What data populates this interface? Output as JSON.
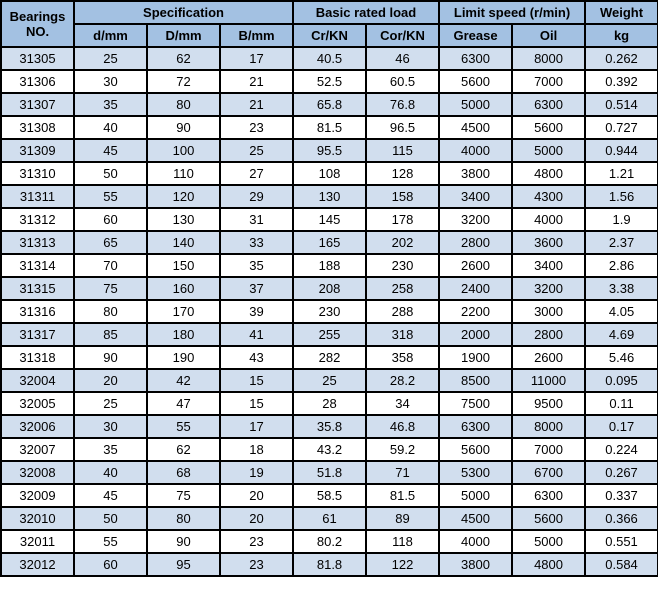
{
  "colors": {
    "header_bg": "#a3c1e2",
    "row_even": "#d1deee",
    "row_odd": "#ffffff",
    "border": "#000000"
  },
  "header": {
    "bearings_no": "Bearings NO.",
    "specification": "Specification",
    "basic_rated_load": "Basic rated load",
    "limit_speed": "Limit speed (r/min)",
    "weight": "Weight",
    "d_mm": "d/mm",
    "D_mm": "D/mm",
    "B_mm": "B/mm",
    "cr_kn": "Cr/KN",
    "cor_kn": "Cor/KN",
    "grease": "Grease",
    "oil": "Oil",
    "kg": "kg"
  },
  "columns": [
    "bno",
    "d",
    "D",
    "B",
    "cr",
    "cor",
    "grease",
    "oil",
    "wt"
  ],
  "rows": [
    {
      "bno": "31305",
      "d": "25",
      "D": "62",
      "B": "17",
      "cr": "40.5",
      "cor": "46",
      "grease": "6300",
      "oil": "8000",
      "wt": "0.262"
    },
    {
      "bno": "31306",
      "d": "30",
      "D": "72",
      "B": "21",
      "cr": "52.5",
      "cor": "60.5",
      "grease": "5600",
      "oil": "7000",
      "wt": "0.392"
    },
    {
      "bno": "31307",
      "d": "35",
      "D": "80",
      "B": "21",
      "cr": "65.8",
      "cor": "76.8",
      "grease": "5000",
      "oil": "6300",
      "wt": "0.514"
    },
    {
      "bno": "31308",
      "d": "40",
      "D": "90",
      "B": "23",
      "cr": "81.5",
      "cor": "96.5",
      "grease": "4500",
      "oil": "5600",
      "wt": "0.727"
    },
    {
      "bno": "31309",
      "d": "45",
      "D": "100",
      "B": "25",
      "cr": "95.5",
      "cor": "115",
      "grease": "4000",
      "oil": "5000",
      "wt": "0.944"
    },
    {
      "bno": "31310",
      "d": "50",
      "D": "110",
      "B": "27",
      "cr": "108",
      "cor": "128",
      "grease": "3800",
      "oil": "4800",
      "wt": "1.21"
    },
    {
      "bno": "31311",
      "d": "55",
      "D": "120",
      "B": "29",
      "cr": "130",
      "cor": "158",
      "grease": "3400",
      "oil": "4300",
      "wt": "1.56"
    },
    {
      "bno": "31312",
      "d": "60",
      "D": "130",
      "B": "31",
      "cr": "145",
      "cor": "178",
      "grease": "3200",
      "oil": "4000",
      "wt": "1.9"
    },
    {
      "bno": "31313",
      "d": "65",
      "D": "140",
      "B": "33",
      "cr": "165",
      "cor": "202",
      "grease": "2800",
      "oil": "3600",
      "wt": "2.37"
    },
    {
      "bno": "31314",
      "d": "70",
      "D": "150",
      "B": "35",
      "cr": "188",
      "cor": "230",
      "grease": "2600",
      "oil": "3400",
      "wt": "2.86"
    },
    {
      "bno": "31315",
      "d": "75",
      "D": "160",
      "B": "37",
      "cr": "208",
      "cor": "258",
      "grease": "2400",
      "oil": "3200",
      "wt": "3.38"
    },
    {
      "bno": "31316",
      "d": "80",
      "D": "170",
      "B": "39",
      "cr": "230",
      "cor": "288",
      "grease": "2200",
      "oil": "3000",
      "wt": "4.05"
    },
    {
      "bno": "31317",
      "d": "85",
      "D": "180",
      "B": "41",
      "cr": "255",
      "cor": "318",
      "grease": "2000",
      "oil": "2800",
      "wt": "4.69"
    },
    {
      "bno": "31318",
      "d": "90",
      "D": "190",
      "B": "43",
      "cr": "282",
      "cor": "358",
      "grease": "1900",
      "oil": "2600",
      "wt": "5.46"
    },
    {
      "bno": "32004",
      "d": "20",
      "D": "42",
      "B": "15",
      "cr": "25",
      "cor": "28.2",
      "grease": "8500",
      "oil": "11000",
      "wt": "0.095"
    },
    {
      "bno": "32005",
      "d": "25",
      "D": "47",
      "B": "15",
      "cr": "28",
      "cor": "34",
      "grease": "7500",
      "oil": "9500",
      "wt": "0.11"
    },
    {
      "bno": "32006",
      "d": "30",
      "D": "55",
      "B": "17",
      "cr": "35.8",
      "cor": "46.8",
      "grease": "6300",
      "oil": "8000",
      "wt": "0.17"
    },
    {
      "bno": "32007",
      "d": "35",
      "D": "62",
      "B": "18",
      "cr": "43.2",
      "cor": "59.2",
      "grease": "5600",
      "oil": "7000",
      "wt": "0.224"
    },
    {
      "bno": "32008",
      "d": "40",
      "D": "68",
      "B": "19",
      "cr": "51.8",
      "cor": "71",
      "grease": "5300",
      "oil": "6700",
      "wt": "0.267"
    },
    {
      "bno": "32009",
      "d": "45",
      "D": "75",
      "B": "20",
      "cr": "58.5",
      "cor": "81.5",
      "grease": "5000",
      "oil": "6300",
      "wt": "0.337"
    },
    {
      "bno": "32010",
      "d": "50",
      "D": "80",
      "B": "20",
      "cr": "61",
      "cor": "89",
      "grease": "4500",
      "oil": "5600",
      "wt": "0.366"
    },
    {
      "bno": "32011",
      "d": "55",
      "D": "90",
      "B": "23",
      "cr": "80.2",
      "cor": "118",
      "grease": "4000",
      "oil": "5000",
      "wt": "0.551"
    },
    {
      "bno": "32012",
      "d": "60",
      "D": "95",
      "B": "23",
      "cr": "81.8",
      "cor": "122",
      "grease": "3800",
      "oil": "4800",
      "wt": "0.584"
    }
  ]
}
